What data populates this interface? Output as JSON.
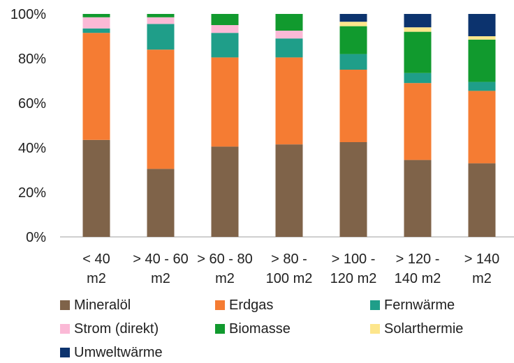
{
  "chart_data": {
    "type": "bar",
    "stacked": true,
    "percent": true,
    "title": "",
    "xlabel": "",
    "ylabel": "",
    "ylim": [
      0,
      100
    ],
    "yticks": [
      "0%",
      "20%",
      "40%",
      "60%",
      "80%",
      "100%"
    ],
    "grid": false,
    "legend_position": "bottom",
    "categories": [
      [
        "< 40",
        "m2"
      ],
      [
        "> 40 - 60",
        "m2"
      ],
      [
        "> 60 - 80",
        "m2"
      ],
      [
        "> 80 -",
        "100 m2"
      ],
      [
        "> 100 -",
        "120 m2"
      ],
      [
        "> 120 -",
        "140  m2"
      ],
      [
        "> 140",
        "m2"
      ]
    ],
    "series": [
      {
        "name": "Mineralöl",
        "color": "#7f6349",
        "values": [
          43.5,
          30.5,
          40.5,
          41.5,
          42.5,
          34.5,
          33.0
        ]
      },
      {
        "name": "Erdgas",
        "color": "#f57c33",
        "values": [
          48.0,
          53.5,
          40.0,
          39.0,
          32.5,
          34.5,
          32.5
        ]
      },
      {
        "name": "Fernwärme",
        "color": "#1f9e89",
        "values": [
          2.0,
          11.5,
          11.0,
          8.5,
          7.0,
          4.5,
          4.0
        ]
      },
      {
        "name": "Strom (direkt)",
        "color": "#fbb9d6",
        "values": [
          5.0,
          3.0,
          3.5,
          3.5,
          0.0,
          0.0,
          0.0
        ]
      },
      {
        "name": "Biomasse",
        "color": "#119a2e",
        "values": [
          1.5,
          1.5,
          5.0,
          7.5,
          12.5,
          18.5,
          19.0
        ]
      },
      {
        "name": "Solarthermie",
        "color": "#fde68c",
        "values": [
          0.0,
          0.0,
          0.0,
          0.0,
          2.0,
          2.0,
          1.5
        ]
      },
      {
        "name": "Umweltwärme",
        "color": "#0c336e",
        "values": [
          0.0,
          0.0,
          0.0,
          0.0,
          3.5,
          6.0,
          10.0
        ]
      }
    ]
  }
}
